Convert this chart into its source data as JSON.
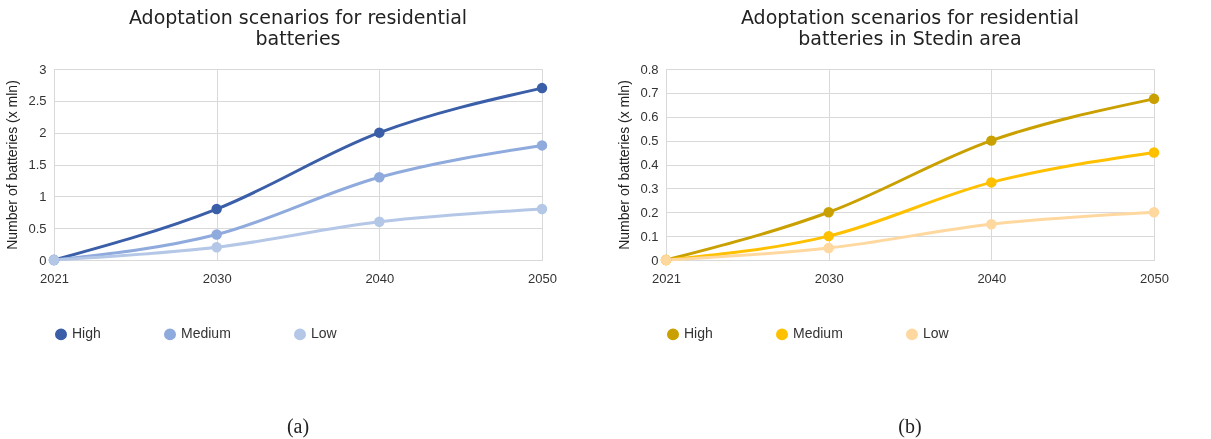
{
  "chart_data": [
    {
      "type": "line",
      "title": "Adoptation scenarios for residential batteries",
      "ylabel": "Number of batteries (x mln)",
      "categories": [
        "2021",
        "2030",
        "2040",
        "2050"
      ],
      "series": [
        {
          "name": "High",
          "color": "#3a5fa8",
          "values": [
            0,
            0.8,
            2,
            2.7
          ]
        },
        {
          "name": "Medium",
          "color": "#8faadc",
          "values": [
            0,
            0.4,
            1.3,
            1.8
          ]
        },
        {
          "name": "Low",
          "color": "#b4c7e7",
          "values": [
            0,
            0.2,
            0.6,
            0.8
          ]
        }
      ],
      "ylim": [
        0,
        3
      ],
      "yticks": [
        0,
        0.5,
        1,
        1.5,
        2,
        2.5,
        3
      ],
      "grid": true,
      "legend": "bottom",
      "marker": "circle",
      "annotations": [
        "(a)"
      ]
    },
    {
      "type": "line",
      "title": "Adoptation scenarios for residential batteries in Stedin area",
      "ylabel": "Number of batteries (x mln)",
      "categories": [
        "2021",
        "2030",
        "2040",
        "2050"
      ],
      "series": [
        {
          "name": "High",
          "color": "#c9a000",
          "values": [
            0,
            0.2,
            0.5,
            0.675
          ]
        },
        {
          "name": "Medium",
          "color": "#ffc000",
          "values": [
            0,
            0.1,
            0.325,
            0.45
          ]
        },
        {
          "name": "Low",
          "color": "#ffd8a0",
          "values": [
            0,
            0.05,
            0.15,
            0.2
          ]
        }
      ],
      "ylim": [
        0,
        0.8
      ],
      "yticks": [
        0,
        0.1,
        0.2,
        0.3,
        0.4,
        0.5,
        0.6,
        0.7,
        0.8
      ],
      "grid": true,
      "legend": "bottom",
      "marker": "circle",
      "annotations": [
        "(b)"
      ]
    }
  ]
}
